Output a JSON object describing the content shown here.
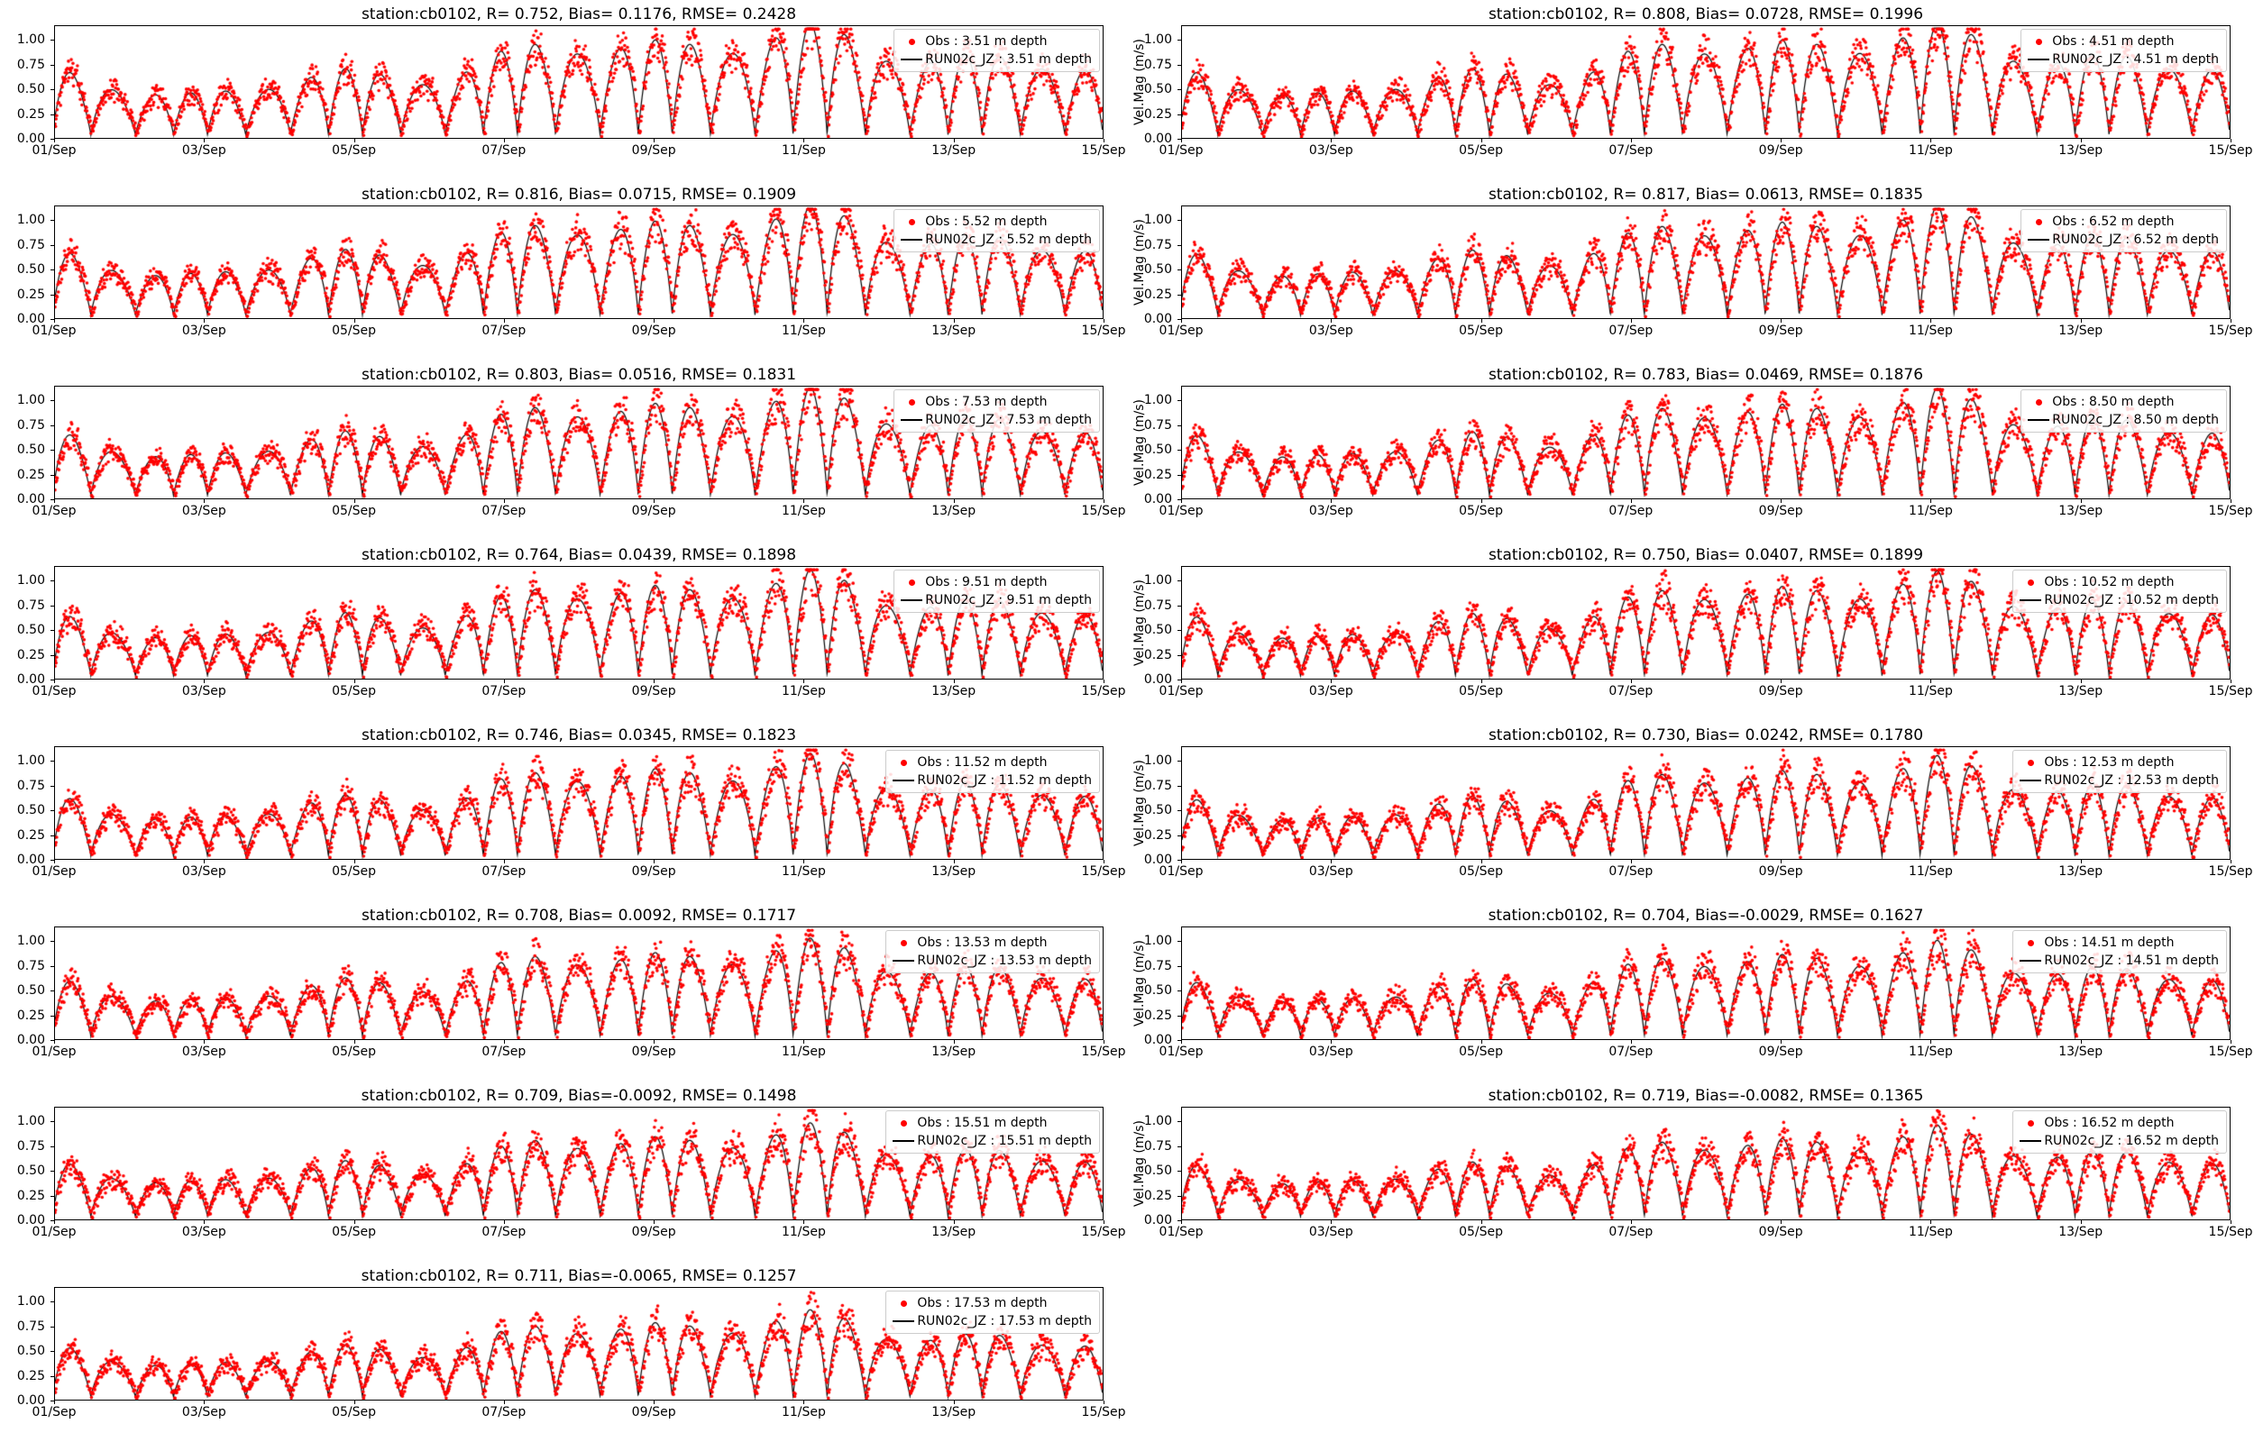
{
  "figure": {
    "station": "cb0102",
    "colors": {
      "obs": "#ff0000",
      "model": "#000000",
      "legend_border": "#cccccc"
    },
    "ylabel_text": "Vel.Mag (m/s)",
    "x_ticks": [
      {
        "day": 0,
        "label": "01/Sep"
      },
      {
        "day": 2,
        "label": "03/Sep"
      },
      {
        "day": 4,
        "label": "05/Sep"
      },
      {
        "day": 6,
        "label": "07/Sep"
      },
      {
        "day": 8,
        "label": "09/Sep"
      },
      {
        "day": 10,
        "label": "11/Sep"
      },
      {
        "day": 12,
        "label": "13/Sep"
      },
      {
        "day": 14,
        "label": "15/Sep"
      }
    ],
    "y_ticks": [
      {
        "value": 0,
        "label": "0.00"
      },
      {
        "value": 0.25,
        "label": "0.25"
      },
      {
        "value": 0.5,
        "label": "0.50"
      },
      {
        "value": 0.75,
        "label": "0.75"
      },
      {
        "value": 1,
        "label": "1.00"
      }
    ]
  },
  "chart_data": {
    "type": "line",
    "description": "15-panel comparison of observed (red dots) vs modeled RUN02c_JZ (black line) current velocity magnitude at station cb0102, one panel per depth layer from 3.51 m to 17.53 m, 01/Sep to 15/Sep. Signal is a semidiurnal tidal oscillation (two peaks per day, 0 to ~1.1 m/s) with a neap lull near 02-03/Sep and spring maximum near 08-10/Sep.",
    "x_range_days": [
      0,
      14
    ],
    "x_start_label": "01/Sep",
    "x_end_label": "15/Sep",
    "ylim": [
      0,
      1.15
    ],
    "ylabel": "Vel.Mag (m/s)",
    "series_styles": {
      "obs": "red dot markers",
      "model": "thin black line"
    },
    "signal": {
      "kind": "semidiurnal tidal velocity magnitude",
      "semidiurnal_period_h": 12.42,
      "spring_neap_period_d": 14.77,
      "neap_day": 1.8,
      "spring_day": 9.2,
      "mean_amplitude": 0.72,
      "spring_neap_modulation": 0.25,
      "short_term_modulation": 0.08,
      "peak_range_mps": [
        0.4,
        1.1
      ]
    },
    "panels": [
      {
        "title": "station:cb0102, R= 0.752, Bias= 0.1176, RMSE= 0.2428",
        "r": 0.752,
        "bias": 0.1176,
        "rmse": 0.2428,
        "depth_m": 3.51,
        "obs_label": "Obs : 3.51 m depth",
        "model_label": "RUN02c_JZ : 3.51 m depth",
        "ylabel": "",
        "amp": 1.0
      },
      {
        "title": "station:cb0102, R= 0.808, Bias= 0.0728, RMSE= 0.1996",
        "r": 0.808,
        "bias": 0.0728,
        "rmse": 0.1996,
        "depth_m": 4.51,
        "obs_label": "Obs : 4.51 m depth",
        "model_label": "RUN02c_JZ : 4.51 m depth",
        "ylabel": "Vel.Mag (m/s)",
        "amp": 1.0
      },
      {
        "title": "station:cb0102, R= 0.816, Bias= 0.0715, RMSE= 0.1909",
        "r": 0.816,
        "bias": 0.0715,
        "rmse": 0.1909,
        "depth_m": 5.52,
        "obs_label": "Obs : 5.52 m depth",
        "model_label": "RUN02c_JZ : 5.52 m depth",
        "ylabel": "",
        "amp": 0.99
      },
      {
        "title": "station:cb0102, R= 0.817, Bias= 0.0613, RMSE= 0.1835",
        "r": 0.817,
        "bias": 0.0613,
        "rmse": 0.1835,
        "depth_m": 6.52,
        "obs_label": "Obs : 6.52 m depth",
        "model_label": "RUN02c_JZ : 6.52 m depth",
        "ylabel": "Vel.Mag (m/s)",
        "amp": 0.98
      },
      {
        "title": "station:cb0102, R= 0.803, Bias= 0.0516, RMSE= 0.1831",
        "r": 0.803,
        "bias": 0.0516,
        "rmse": 0.1831,
        "depth_m": 7.53,
        "obs_label": "Obs : 7.53 m depth",
        "model_label": "RUN02c_JZ : 7.53 m depth",
        "ylabel": "",
        "amp": 0.97
      },
      {
        "title": "station:cb0102, R= 0.783, Bias= 0.0469, RMSE= 0.1876",
        "r": 0.783,
        "bias": 0.0469,
        "rmse": 0.1876,
        "depth_m": 8.5,
        "obs_label": "Obs : 8.50 m depth",
        "model_label": "RUN02c_JZ : 8.50 m depth",
        "ylabel": "Vel.Mag (m/s)",
        "amp": 0.96
      },
      {
        "title": "station:cb0102, R= 0.764, Bias= 0.0439, RMSE= 0.1898",
        "r": 0.764,
        "bias": 0.0439,
        "rmse": 0.1898,
        "depth_m": 9.51,
        "obs_label": "Obs : 9.51 m depth",
        "model_label": "RUN02c_JZ : 9.51 m depth",
        "ylabel": "",
        "amp": 0.95
      },
      {
        "title": "station:cb0102, R= 0.750, Bias= 0.0407, RMSE= 0.1899",
        "r": 0.75,
        "bias": 0.0407,
        "rmse": 0.1899,
        "depth_m": 10.52,
        "obs_label": "Obs : 10.52 m depth",
        "model_label": "RUN02c_JZ : 10.52 m depth",
        "ylabel": "Vel.Mag (m/s)",
        "amp": 0.94
      },
      {
        "title": "station:cb0102, R= 0.746, Bias= 0.0345, RMSE= 0.1823",
        "r": 0.746,
        "bias": 0.0345,
        "rmse": 0.1823,
        "depth_m": 11.52,
        "obs_label": "Obs : 11.52 m depth",
        "model_label": "RUN02c_JZ : 11.52 m depth",
        "ylabel": "",
        "amp": 0.92
      },
      {
        "title": "station:cb0102, R= 0.730, Bias= 0.0242, RMSE= 0.1780",
        "r": 0.73,
        "bias": 0.0242,
        "rmse": 0.178,
        "depth_m": 12.53,
        "obs_label": "Obs : 12.53 m depth",
        "model_label": "RUN02c_JZ : 12.53 m depth",
        "ylabel": "Vel.Mag (m/s)",
        "amp": 0.9
      },
      {
        "title": "station:cb0102, R= 0.708, Bias= 0.0092, RMSE= 0.1717",
        "r": 0.708,
        "bias": 0.0092,
        "rmse": 0.1717,
        "depth_m": 13.53,
        "obs_label": "Obs : 13.53 m depth",
        "model_label": "RUN02c_JZ : 13.53 m depth",
        "ylabel": "",
        "amp": 0.88
      },
      {
        "title": "station:cb0102, R= 0.704, Bias=-0.0029, RMSE= 0.1627",
        "r": 0.704,
        "bias": -0.0029,
        "rmse": 0.1627,
        "depth_m": 14.51,
        "obs_label": "Obs : 14.51 m depth",
        "model_label": "RUN02c_JZ : 14.51 m depth",
        "ylabel": "Vel.Mag (m/s)",
        "amp": 0.86
      },
      {
        "title": "station:cb0102, R= 0.709, Bias=-0.0092, RMSE= 0.1498",
        "r": 0.709,
        "bias": -0.0092,
        "rmse": 0.1498,
        "depth_m": 15.51,
        "obs_label": "Obs : 15.51 m depth",
        "model_label": "RUN02c_JZ : 15.51 m depth",
        "ylabel": "",
        "amp": 0.84
      },
      {
        "title": "station:cb0102, R= 0.719, Bias=-0.0082, RMSE= 0.1365",
        "r": 0.719,
        "bias": -0.0082,
        "rmse": 0.1365,
        "depth_m": 16.52,
        "obs_label": "Obs : 16.52 m depth",
        "model_label": "RUN02c_JZ : 16.52 m depth",
        "ylabel": "Vel.Mag (m/s)",
        "amp": 0.82
      },
      {
        "title": "station:cb0102, R= 0.711, Bias=-0.0065, RMSE= 0.1257",
        "r": 0.711,
        "bias": -0.0065,
        "rmse": 0.1257,
        "depth_m": 17.53,
        "obs_label": "Obs : 17.53 m depth",
        "model_label": "RUN02c_JZ : 17.53 m depth",
        "ylabel": "",
        "amp": 0.78
      }
    ]
  }
}
